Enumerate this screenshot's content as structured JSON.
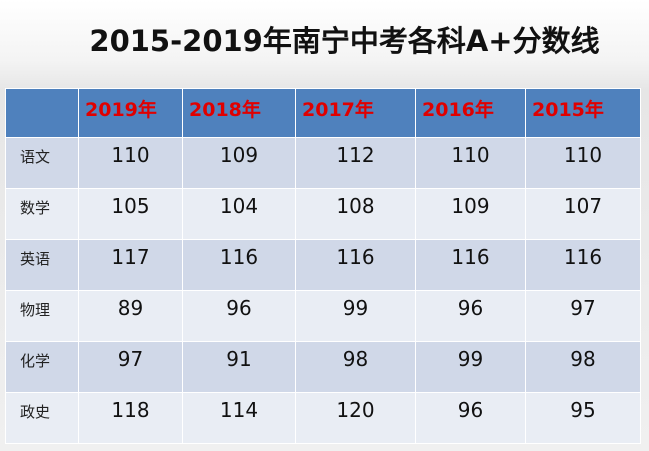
{
  "header": {
    "title": "2015-2019年南宁中考各科A+分数线"
  },
  "table": {
    "columns": [
      "2019年",
      "2018年",
      "2017年",
      "2016年",
      "2015年"
    ],
    "rows": [
      {
        "label": "语文",
        "values": [
          110,
          109,
          112,
          110,
          110
        ]
      },
      {
        "label": "数学",
        "values": [
          105,
          104,
          108,
          109,
          107
        ]
      },
      {
        "label": "英语",
        "values": [
          117,
          116,
          116,
          116,
          116
        ]
      },
      {
        "label": "物理",
        "values": [
          89,
          96,
          99,
          96,
          97
        ]
      },
      {
        "label": "化学",
        "values": [
          97,
          91,
          98,
          99,
          98
        ]
      },
      {
        "label": "政史",
        "values": [
          118,
          114,
          120,
          96,
          95
        ]
      }
    ]
  }
}
